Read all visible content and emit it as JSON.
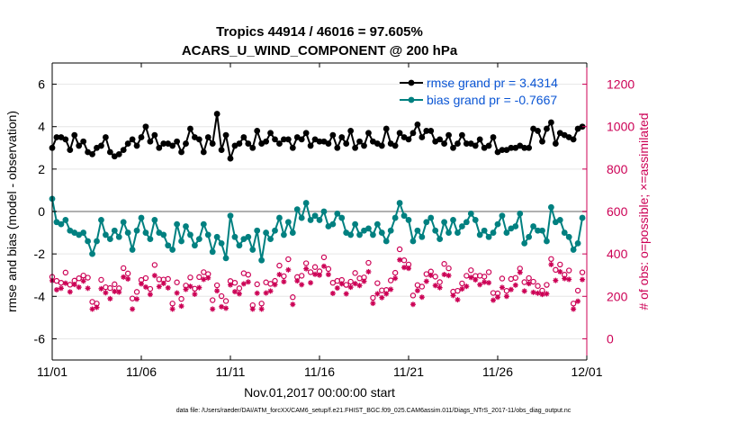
{
  "colors": {
    "rmse": "#000000",
    "bias": "#008080",
    "obs": "#cc0055",
    "legend_text": "#0a55d4",
    "zero_line": "#b0b0b0",
    "grid": "#e6e6e6"
  },
  "chart_data": {
    "type": "line",
    "title": "Tropics 44914 / 46016 = 97.605%",
    "subtitle": "ACARS_U_WIND_COMPONENT @ 200 hPa",
    "xlabel": "Nov.01,2017 00:00:00 start",
    "ylabel_left": "rmse and bias (model - observation)",
    "ylabel_right": "# of obs: o=possible; ×=assimilated",
    "xlim": [
      0,
      30
    ],
    "ylim_left": [
      -7,
      7
    ],
    "ylim_right": [
      -100,
      1300
    ],
    "x_ticks": [
      0,
      5,
      10,
      15,
      20,
      25,
      30
    ],
    "x_tick_labels": [
      "11/01",
      "11/06",
      "11/11",
      "11/16",
      "11/21",
      "11/26",
      "12/01"
    ],
    "y_ticks_left": [
      -6,
      -4,
      -2,
      0,
      2,
      4,
      6
    ],
    "y_ticks_right": [
      0,
      200,
      400,
      600,
      800,
      1000,
      1200
    ],
    "legend": [
      {
        "name": "rmse grand pr = 3.4314",
        "series": "rmse"
      },
      {
        "name": "bias grand pr = -0.7667",
        "series": "bias"
      }
    ],
    "x": [
      0,
      0.25,
      0.5,
      0.75,
      1,
      1.25,
      1.5,
      1.75,
      2,
      2.25,
      2.5,
      2.75,
      3,
      3.25,
      3.5,
      3.75,
      4,
      4.25,
      4.5,
      4.75,
      5,
      5.25,
      5.5,
      5.75,
      6,
      6.25,
      6.5,
      6.75,
      7,
      7.25,
      7.5,
      7.75,
      8,
      8.25,
      8.5,
      8.75,
      9,
      9.25,
      9.5,
      9.75,
      10,
      10.25,
      10.5,
      10.75,
      11,
      11.25,
      11.5,
      11.75,
      12,
      12.25,
      12.5,
      12.75,
      13,
      13.25,
      13.5,
      13.75,
      14,
      14.25,
      14.5,
      14.75,
      15,
      15.25,
      15.5,
      15.75,
      16,
      16.25,
      16.5,
      16.75,
      17,
      17.25,
      17.5,
      17.75,
      18,
      18.25,
      18.5,
      18.75,
      19,
      19.25,
      19.5,
      19.75,
      20,
      20.25,
      20.5,
      20.75,
      21,
      21.25,
      21.5,
      21.75,
      22,
      22.25,
      22.5,
      22.75,
      23,
      23.25,
      23.5,
      23.75,
      24,
      24.25,
      24.5,
      24.75,
      25,
      25.25,
      25.5,
      25.75,
      26,
      26.25,
      26.5,
      26.75,
      27,
      27.25,
      27.5,
      27.75,
      28,
      28.25,
      28.5,
      28.75,
      29,
      29.25,
      29.5,
      29.75
    ],
    "series": [
      {
        "name": "rmse",
        "values": [
          3.0,
          3.5,
          3.5,
          3.4,
          2.9,
          3.6,
          3.1,
          3.3,
          2.8,
          2.7,
          3.0,
          3.1,
          3.5,
          2.8,
          2.6,
          2.7,
          2.9,
          3.2,
          3.4,
          3.1,
          3.5,
          4.0,
          3.3,
          3.6,
          3.0,
          3.2,
          3.2,
          3.1,
          3.3,
          2.8,
          3.2,
          3.9,
          3.5,
          3.4,
          2.8,
          3.5,
          3.2,
          4.6,
          2.9,
          3.6,
          2.5,
          3.1,
          3.2,
          3.5,
          3.2,
          3.0,
          3.8,
          3.2,
          3.3,
          3.7,
          3.4,
          3.2,
          3.4,
          3.4,
          3.0,
          3.5,
          3.4,
          3.7,
          3.1,
          3.4,
          3.3,
          3.3,
          3.2,
          3.6,
          3.0,
          3.5,
          3.2,
          3.8,
          3.0,
          3.3,
          3.1,
          3.7,
          3.3,
          3.2,
          3.1,
          3.9,
          3.2,
          3.1,
          3.7,
          3.5,
          3.4,
          3.7,
          4.1,
          3.5,
          3.8,
          3.8,
          3.3,
          3.4,
          3.2,
          3.6,
          3.0,
          3.2,
          3.6,
          3.2,
          3.2,
          3.1,
          3.4,
          3.0,
          3.1,
          3.5,
          2.8,
          2.9,
          2.9,
          3.0,
          3.0,
          3.1,
          3.0,
          3.0,
          3.9,
          3.8,
          3.3,
          3.9,
          4.2,
          3.2,
          3.7,
          3.6,
          3.5,
          3.4,
          3.9,
          4.0
        ],
        "color": "#000000"
      },
      {
        "name": "bias",
        "values": [
          0.6,
          -0.5,
          -0.6,
          -0.4,
          -0.9,
          -1.0,
          -1.1,
          -1.0,
          -1.4,
          -2.0,
          -1.4,
          -0.4,
          -1.1,
          -1.3,
          -0.9,
          -1.2,
          -0.5,
          -1.0,
          -1.8,
          -0.9,
          -0.3,
          -1.0,
          -1.3,
          -0.4,
          -1.0,
          -1.1,
          -1.6,
          -1.8,
          -0.6,
          -1.4,
          -0.7,
          -1.1,
          -1.6,
          -1.3,
          -0.6,
          -1.1,
          -1.9,
          -1.2,
          -1.5,
          -2.2,
          -0.2,
          -1.2,
          -1.6,
          -1.3,
          -1.2,
          -1.8,
          -0.9,
          -2.3,
          -1.0,
          -1.3,
          -0.9,
          -0.3,
          -1.1,
          -0.5,
          -1.0,
          0.1,
          -0.3,
          0.4,
          -0.4,
          -0.2,
          -0.4,
          0.0,
          -0.7,
          -0.6,
          -0.1,
          -0.3,
          -1.0,
          -1.1,
          -0.6,
          -1.1,
          -0.9,
          -0.8,
          -1.1,
          -0.6,
          -1.0,
          -1.4,
          -0.9,
          -0.3,
          0.4,
          -0.2,
          -0.4,
          -1.4,
          -0.9,
          -1.2,
          -0.5,
          -0.3,
          -0.9,
          -1.3,
          -0.5,
          -1.0,
          -0.4,
          -1.0,
          -0.7,
          -0.5,
          -0.1,
          -0.4,
          -1.1,
          -0.9,
          -1.2,
          -1.0,
          -0.6,
          -0.2,
          -1.0,
          -0.8,
          -0.7,
          -0.1,
          -1.5,
          -1.2,
          -0.7,
          -0.9,
          -0.9,
          -1.4,
          0.2,
          -0.5,
          -0.4,
          -1.0,
          -1.2,
          -1.8,
          -1.5,
          -0.3
        ],
        "color": "#008080"
      }
    ]
  },
  "footer": "data file: /Users/raeder/DAI/ATM_forcXX/CAM6_setup/f.e21.FHIST_BGC.f09_025.CAM6assim.011/Diags_NTrS_2017-11/obs_diag_output.nc"
}
